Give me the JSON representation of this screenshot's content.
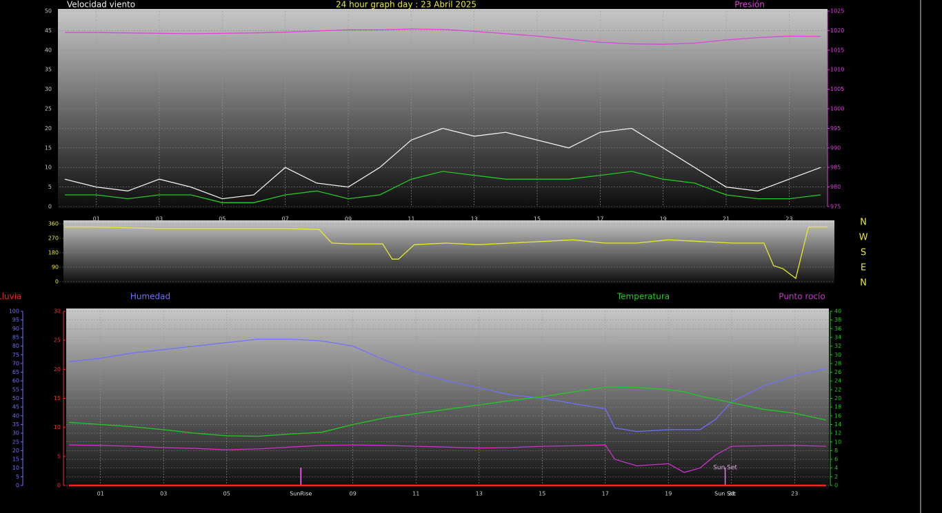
{
  "chart_data": [
    {
      "type": "line",
      "title": "24 hour graph day : 23 Abril 2025",
      "x": [
        0,
        1,
        2,
        3,
        4,
        5,
        6,
        7,
        8,
        9,
        10,
        11,
        12,
        13,
        14,
        15,
        16,
        17,
        18,
        19,
        20,
        21,
        22,
        23,
        24
      ],
      "xlim": [
        0,
        24
      ],
      "xticks": [
        {
          "value": 1,
          "label": "01"
        },
        {
          "value": 3,
          "label": "03"
        },
        {
          "value": 5,
          "label": "05"
        },
        {
          "value": 7,
          "label": "07"
        },
        {
          "value": 9,
          "label": "09"
        },
        {
          "value": 11,
          "label": "11"
        },
        {
          "value": 13,
          "label": "13"
        },
        {
          "value": 15,
          "label": "15"
        },
        {
          "value": 17,
          "label": "17"
        },
        {
          "value": 19,
          "label": "19"
        },
        {
          "value": 21,
          "label": "21"
        },
        {
          "value": 23,
          "label": "23"
        }
      ],
      "ylim": [
        0,
        50
      ],
      "yticks": [
        0,
        5,
        10,
        15,
        20,
        25,
        30,
        35,
        40,
        45,
        50
      ],
      "ytick_color": "#c8c8c8",
      "y2lim": [
        975,
        1025
      ],
      "y2ticks": [
        975,
        980,
        985,
        990,
        995,
        1000,
        1005,
        1010,
        1015,
        1020,
        1025
      ],
      "y2tick_color": "#e040e0",
      "grid": true,
      "series": [
        {
          "name": "Velocidad viento",
          "color": "#f0f0f0",
          "values": [
            7,
            5,
            4,
            7,
            5,
            2,
            3,
            10,
            6,
            5,
            10,
            17,
            20,
            18,
            19,
            17,
            15,
            19,
            20,
            15,
            10,
            5,
            4,
            7,
            10
          ]
        },
        {
          "color": "#22cc22",
          "values": [
            3,
            3,
            2,
            3,
            3,
            1,
            1,
            3,
            4,
            2,
            3,
            7,
            9,
            8,
            7,
            7,
            7,
            8,
            9,
            7,
            6,
            3,
            2,
            2,
            3
          ]
        },
        {
          "name": "Presión",
          "color": "#e040e0",
          "axis": "y2",
          "values": [
            1019.5,
            1019.5,
            1019.4,
            1019.3,
            1019.2,
            1019.3,
            1019.4,
            1019.6,
            1019.9,
            1020.2,
            1020.2,
            1020.4,
            1020.3,
            1019.8,
            1019.2,
            1018.6,
            1017.8,
            1017.0,
            1016.6,
            1016.5,
            1016.8,
            1017.6,
            1018.2,
            1018.6,
            1018.5
          ]
        }
      ]
    },
    {
      "type": "line",
      "x": [
        0,
        1,
        2,
        3,
        4,
        5,
        6,
        7,
        8,
        8.4,
        9,
        10,
        10.3,
        10.5,
        11,
        12,
        13,
        14,
        15,
        16,
        17,
        18,
        19,
        20,
        21,
        22,
        22.3,
        22.6,
        23,
        23.4,
        24
      ],
      "xlim": [
        0,
        24
      ],
      "ylim": [
        0,
        360
      ],
      "yticks": [
        0,
        90,
        180,
        270,
        360
      ],
      "ytick_color": "#e8e830",
      "dir_labels": [
        "N",
        "W",
        "S",
        "E",
        "N"
      ],
      "grid": true,
      "series": [
        {
          "color": "#e8e830",
          "values": [
            340,
            340,
            335,
            330,
            330,
            330,
            330,
            330,
            325,
            240,
            235,
            235,
            140,
            140,
            230,
            240,
            230,
            240,
            250,
            260,
            240,
            240,
            260,
            250,
            240,
            240,
            100,
            80,
            20,
            340,
            340
          ]
        }
      ]
    },
    {
      "type": "line",
      "x": [
        0,
        1,
        2,
        3,
        4,
        5,
        6,
        7,
        8,
        9,
        10,
        11,
        12,
        13,
        14,
        15,
        16,
        17,
        17.3,
        18,
        19,
        19.5,
        20,
        20.5,
        21,
        22,
        23,
        24
      ],
      "xlim": [
        0,
        24
      ],
      "xticks": [
        {
          "value": 1,
          "label": "01"
        },
        {
          "value": 3,
          "label": "03"
        },
        {
          "value": 5,
          "label": "05"
        },
        {
          "value": 9,
          "label": "09"
        },
        {
          "value": 11,
          "label": "11"
        },
        {
          "value": 13,
          "label": "13"
        },
        {
          "value": 15,
          "label": "15"
        },
        {
          "value": 17,
          "label": "17"
        },
        {
          "value": 19,
          "label": "19"
        },
        {
          "value": 21,
          "label": "21"
        },
        {
          "value": 23,
          "label": "23"
        }
      ],
      "ylim": [
        0,
        100
      ],
      "yticks": [
        0,
        5,
        10,
        15,
        20,
        25,
        30,
        35,
        40,
        45,
        50,
        55,
        60,
        65,
        70,
        75,
        80,
        85,
        90,
        95,
        100
      ],
      "ytick_color": "#7070ff",
      "y2lim": [
        0,
        40
      ],
      "y2ticks": [
        0,
        2,
        4,
        6,
        8,
        10,
        12,
        14,
        16,
        18,
        20,
        22,
        24,
        26,
        28,
        30,
        32,
        34,
        36,
        38,
        40
      ],
      "y2tick_color": "#22cc22",
      "y3lim": [
        0,
        30
      ],
      "y3ticks": [
        0,
        5,
        10,
        15,
        20,
        25,
        30
      ],
      "y3tick_color": "#ff3030",
      "annotations": [
        {
          "x": 7.35,
          "label": "SunRise"
        },
        {
          "x": 20.8,
          "label": "Sun Set"
        }
      ],
      "grid": true,
      "series": [
        {
          "name": "Lluvia",
          "color": "#ff2020",
          "axis": "y3",
          "values": [
            0,
            0,
            0,
            0,
            0,
            0,
            0,
            0,
            0,
            0,
            0,
            0,
            0,
            0,
            0,
            0,
            0,
            0,
            0,
            0,
            0,
            0,
            0,
            0,
            0,
            0,
            0,
            0
          ]
        },
        {
          "name": "Humedad",
          "color": "#7070ff",
          "values": [
            71,
            73,
            76,
            78,
            80,
            82,
            84,
            84,
            83,
            80,
            72,
            65,
            60,
            56,
            52,
            50,
            47,
            44,
            33,
            31,
            32,
            32,
            32,
            38,
            48,
            57,
            63,
            67
          ]
        },
        {
          "name": "Temperatura",
          "color": "#22cc22",
          "axis": "y2",
          "values": [
            14.5,
            14,
            13.5,
            12.8,
            12,
            11.4,
            11.3,
            11.8,
            12.2,
            14,
            15.5,
            16.5,
            17.5,
            18.5,
            19.5,
            20.4,
            21.5,
            22.6,
            22.6,
            22.5,
            22,
            21.5,
            20.5,
            19.8,
            19,
            17.5,
            16.6,
            15
          ]
        },
        {
          "name": "Punto rocío",
          "color": "#cc33cc",
          "axis": "y2",
          "values": [
            9.3,
            9.2,
            9,
            8.7,
            8.5,
            8.2,
            8.4,
            8.8,
            9.2,
            9.3,
            9.2,
            9,
            8.8,
            8.6,
            8.7,
            9,
            9.1,
            9.3,
            6,
            4.5,
            5,
            3,
            4,
            7,
            9,
            9.1,
            9.2,
            9
          ]
        }
      ]
    }
  ]
}
